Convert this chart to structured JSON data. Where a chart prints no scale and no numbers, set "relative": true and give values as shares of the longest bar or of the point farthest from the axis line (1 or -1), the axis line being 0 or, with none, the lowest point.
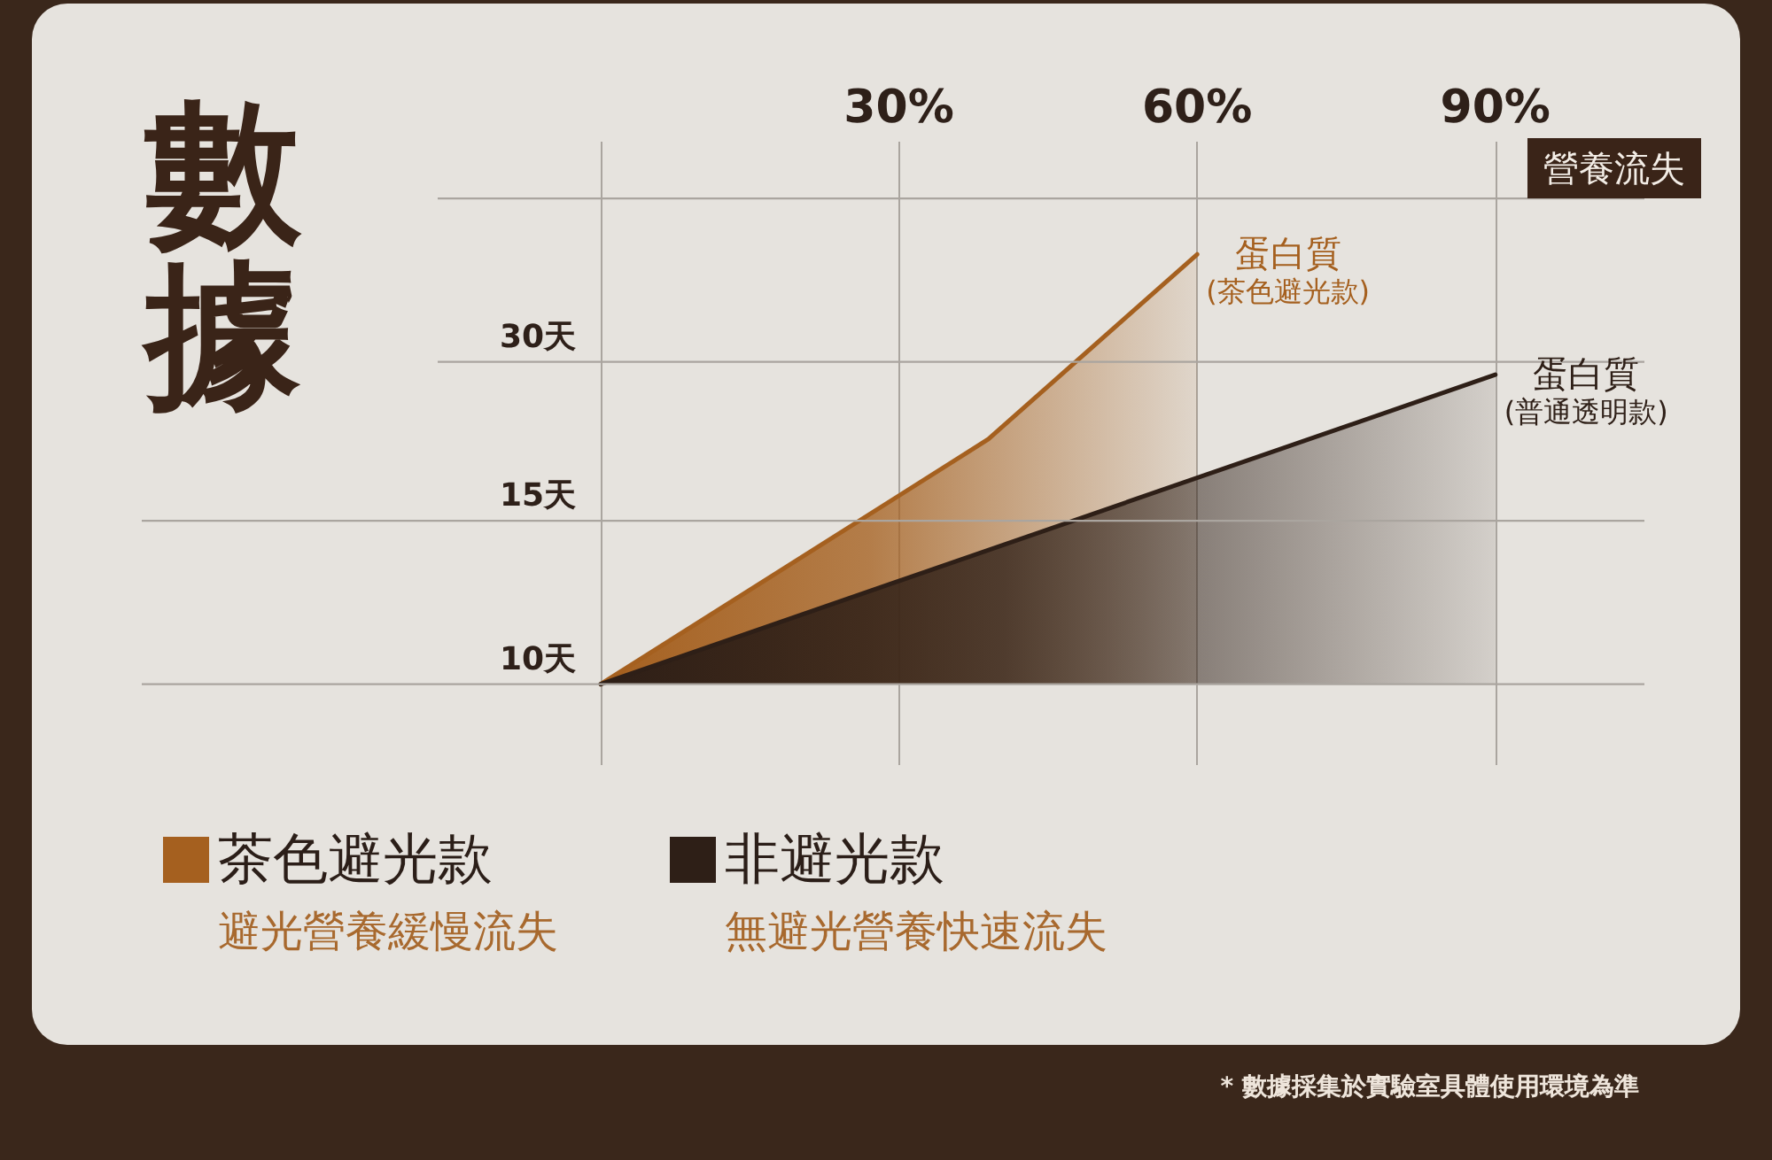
{
  "chart_data": {
    "type": "area",
    "title": "數據",
    "xlabel": "營養流失",
    "relative": true,
    "series": [
      {
        "name": "茶色避光款",
        "color": "#a5601f",
        "x": [
          0,
          39,
          60
        ],
        "values": [
          0,
          0.57,
          1
        ]
      },
      {
        "name": "非避光款",
        "color": "#2e1f17",
        "x": [
          0,
          90
        ],
        "values": [
          0,
          0.72
        ]
      }
    ],
    "xlim": [
      0,
      105
    ],
    "xticks": [
      {
        "value": 0,
        "label": null
      },
      {
        "value": 30,
        "label": "30%"
      },
      {
        "value": 60,
        "label": "60%"
      },
      {
        "value": 90,
        "label": "90%"
      }
    ],
    "ref_lines": [
      {
        "axis": "y",
        "value": 0,
        "label": "10天"
      },
      {
        "axis": "y",
        "value": 0.38,
        "label": "15天"
      },
      {
        "axis": "y",
        "value": 0.75,
        "label": "30天"
      },
      {
        "axis": "y",
        "value": 1.13,
        "label": null
      }
    ],
    "grid": "x",
    "legend": "bottom left",
    "marker": "none",
    "line_style": "solid",
    "annotations": [
      {
        "text": "蛋白質\n(茶色避光款)",
        "x": 60,
        "y": 1
      },
      {
        "text": "蛋白質\n(普通透明款)",
        "x": 90,
        "y": 0.72
      },
      "避光營養緩慢流失",
      "無避光營養快速流失",
      "* 數據採集於實驗室具體使用環境為準"
    ]
  }
}
